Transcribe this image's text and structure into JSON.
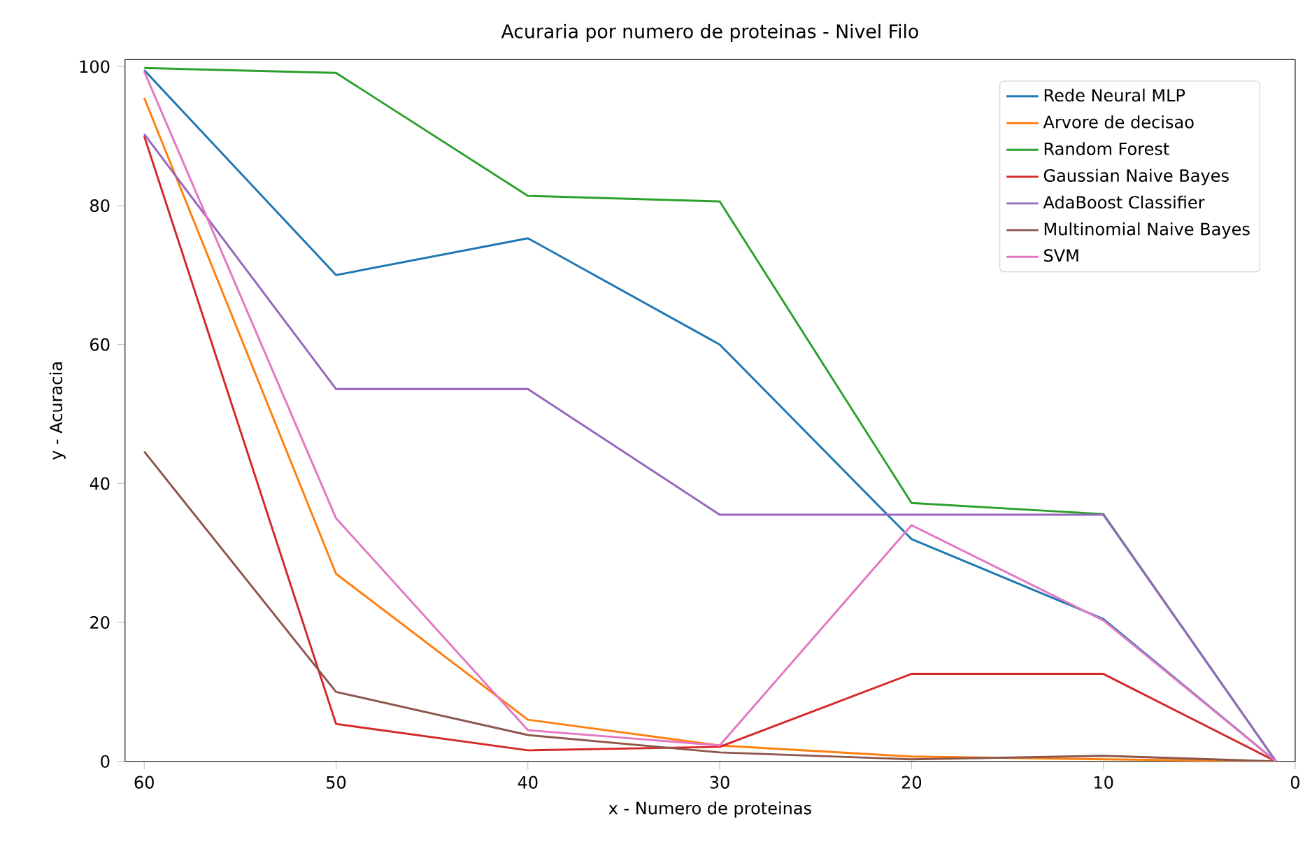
{
  "chart_data": {
    "type": "line",
    "title": "Acuraria por numero de proteinas - Nivel Filo",
    "xlabel": "x - Numero de proteinas",
    "ylabel": "y - Acuracia",
    "x": [
      60,
      50,
      40,
      30,
      20,
      10,
      1
    ],
    "series": [
      {
        "name": "Rede Neural MLP",
        "color": "#1f77b4",
        "values": [
          99.5,
          70,
          75.3,
          60,
          32,
          20.5,
          0
        ]
      },
      {
        "name": "Arvore de decisao",
        "color": "#ff7f0e",
        "values": [
          95.5,
          27,
          6,
          2.3,
          0.7,
          0.3,
          0
        ]
      },
      {
        "name": "Random Forest",
        "color": "#2ca02c",
        "values": [
          99.8,
          99.1,
          81.4,
          80.6,
          37.2,
          35.6,
          0
        ]
      },
      {
        "name": "Gaussian Naive Bayes",
        "color": "#d62728",
        "values": [
          90,
          5.4,
          1.6,
          2.1,
          12.6,
          12.6,
          0
        ]
      },
      {
        "name": "AdaBoost Classifier",
        "color": "#9467bd",
        "values": [
          90.3,
          53.6,
          53.6,
          35.5,
          35.5,
          35.5,
          0
        ]
      },
      {
        "name": "Multinomial Naive Bayes",
        "color": "#8c564b",
        "values": [
          44.6,
          10,
          3.8,
          1.3,
          0.3,
          0.8,
          0
        ]
      },
      {
        "name": "SVM",
        "color": "#e377c2",
        "values": [
          99.3,
          35,
          4.5,
          2.3,
          34,
          20.3,
          0
        ]
      }
    ],
    "xlim": [
      61,
      0
    ],
    "ylim": [
      0,
      101
    ],
    "xticks": [
      60,
      50,
      40,
      30,
      20,
      10,
      0
    ],
    "yticks": [
      0,
      20,
      40,
      60,
      80,
      100
    ],
    "legend": "top right",
    "marker": "none",
    "line_style": "solid"
  }
}
